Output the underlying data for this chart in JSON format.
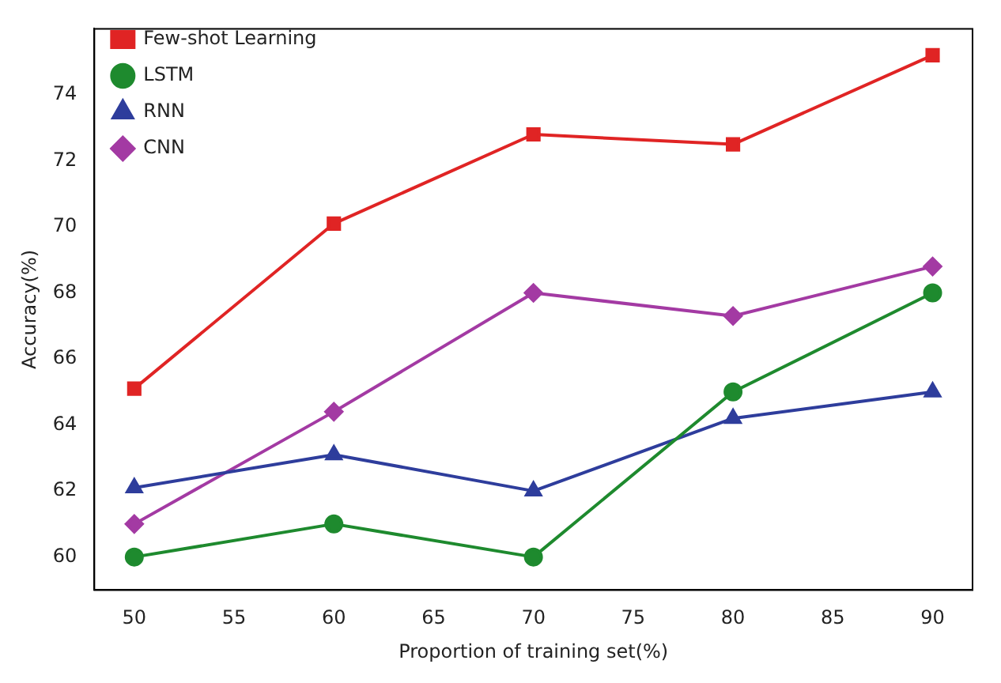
{
  "chart_data": {
    "type": "line",
    "xlabel": "Proportion of training set(%)",
    "ylabel": "Accuracy(%)",
    "x": [
      50,
      60,
      70,
      80,
      90
    ],
    "series": [
      {
        "name": "Few-shot Learning",
        "color": "#e02424",
        "marker": "square",
        "values": [
          65.1,
          70.1,
          72.8,
          72.5,
          75.2
        ]
      },
      {
        "name": "LSTM",
        "color": "#1e8a2e",
        "marker": "circle",
        "values": [
          60,
          61,
          60,
          65,
          68
        ]
      },
      {
        "name": "RNN",
        "color": "#2e3d9c",
        "marker": "triangle",
        "values": [
          62.1,
          63.1,
          62.0,
          64.2,
          65.0
        ]
      },
      {
        "name": "CNN",
        "color": "#a33aa3",
        "marker": "diamond",
        "values": [
          61,
          64.4,
          68,
          67.3,
          68.8
        ]
      }
    ],
    "xlim": [
      48,
      92
    ],
    "xticks": [
      50,
      55,
      60,
      65,
      70,
      75,
      80,
      85,
      90
    ],
    "ylim": [
      59,
      76
    ],
    "yticks": [
      60,
      62,
      64,
      66,
      68,
      70,
      72,
      74
    ],
    "grid": false,
    "legend": "top left",
    "line_style": "solid"
  }
}
